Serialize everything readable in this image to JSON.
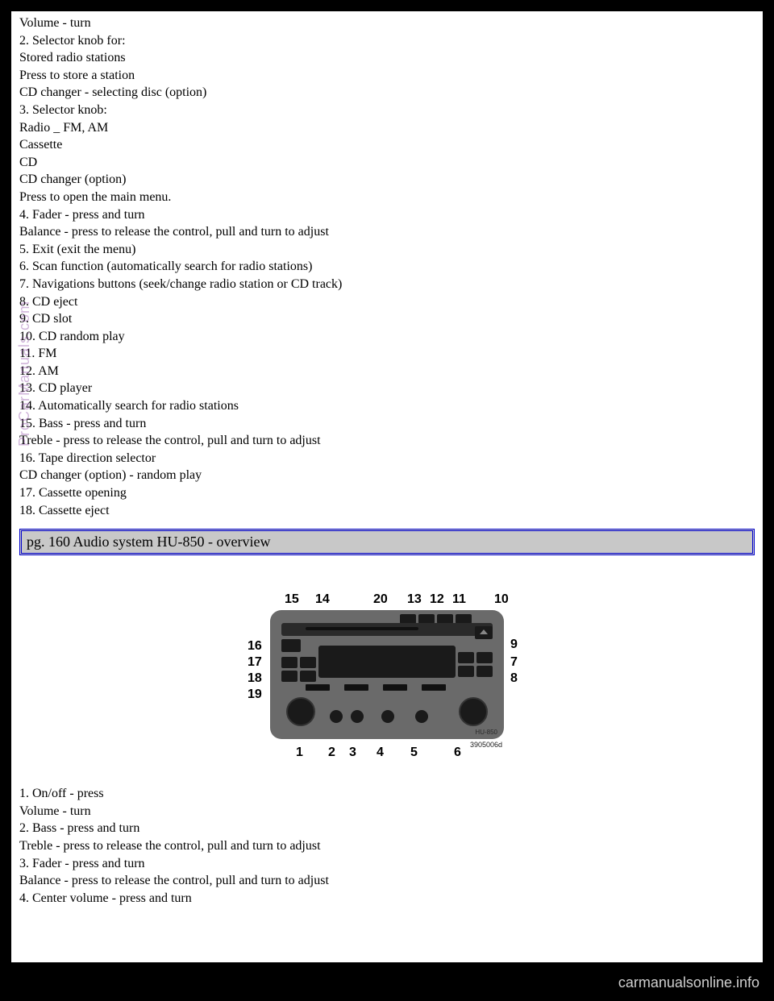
{
  "list1": [
    "Volume - turn",
    "2. Selector knob for:",
    "Stored radio stations",
    "Press to store a station",
    "CD changer - selecting disc (option)",
    "3. Selector knob:",
    "Radio _ FM, AM",
    "Cassette",
    "CD",
    "CD changer (option)",
    "Press to open the main menu.",
    "4. Fader - press and turn",
    "Balance - press to release the control, pull and turn to adjust",
    "5. Exit (exit the menu)",
    "6. Scan function (automatically search for radio stations)",
    "7. Navigations buttons (seek/change radio station or CD track)",
    "8. CD eject",
    "9. CD slot",
    "10. CD random play",
    "11. FM",
    "12. AM",
    "13. CD player",
    "14. Automatically search for radio stations",
    "15. Bass - press and turn",
    "Treble - press to release the control, pull and turn to adjust",
    "16. Tape direction selector",
    "CD changer (option) - random play",
    "17. Cassette opening",
    "18. Cassette eject"
  ],
  "section_header": "pg. 160 Audio system HU-850 - overview",
  "list2": [
    "1. On/off - press",
    "Volume - turn",
    "2. Bass - press and turn",
    "Treble - press to release the control, pull and turn to adjust",
    "3. Fader - press and turn",
    "Balance - press to release the control, pull and turn to adjust",
    "4. Center volume - press and turn"
  ],
  "diagram": {
    "hu_label": "HU-850",
    "serial": "3905006d",
    "labels": {
      "top": {
        "n15": "15",
        "n14": "14",
        "n20": "20",
        "n13": "13",
        "n12": "12",
        "n11": "11",
        "n10": "10"
      },
      "left": {
        "n16": "16",
        "n17": "17",
        "n18": "18",
        "n19": "19"
      },
      "right": {
        "n9": "9",
        "n7": "7",
        "n8": "8"
      },
      "bottom": {
        "n1": "1",
        "n2": "2",
        "n3": "3",
        "n4": "4",
        "n5": "5",
        "n6": "6"
      }
    },
    "colors": {
      "body": "#6a6a6a",
      "button": "#1a1a1a",
      "background": "#ffffff"
    }
  },
  "watermark": "ProCarManuals.com",
  "footer_url": "carmanualsonline.info"
}
